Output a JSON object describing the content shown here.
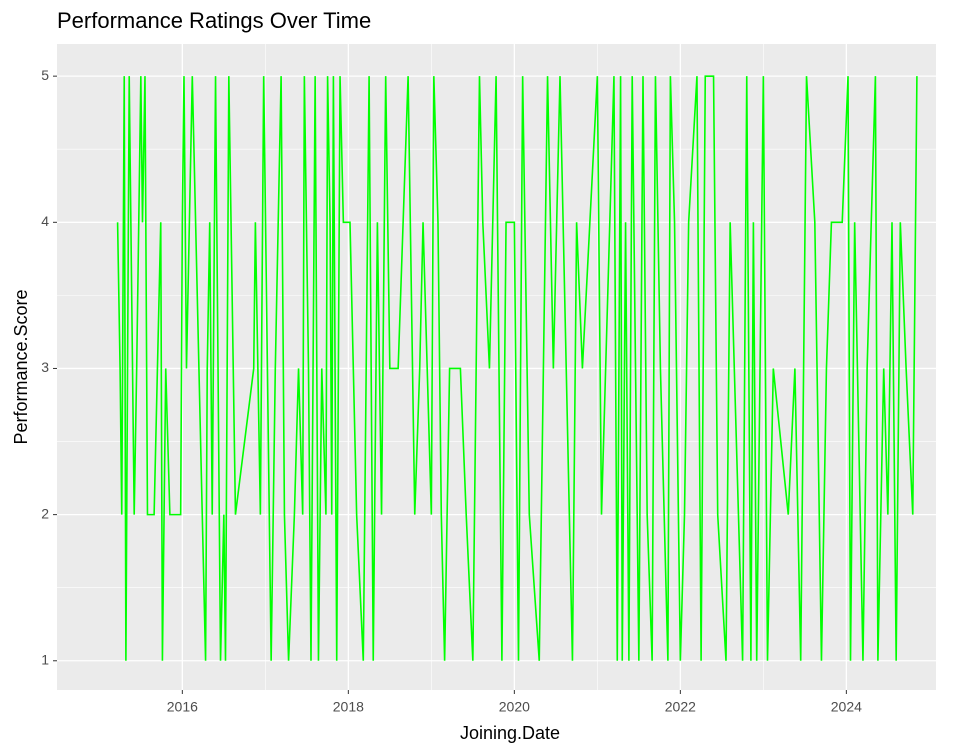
{
  "chart_data": {
    "type": "line",
    "title": "Performance Ratings Over Time",
    "x_label": "Joining.Date",
    "y_label": "Performance.Score",
    "x": [
      2015.22,
      2015.25,
      2015.27,
      2015.3,
      2015.32,
      2015.36,
      2015.42,
      2015.45,
      2015.5,
      2015.52,
      2015.55,
      2015.58,
      2015.66,
      2015.7,
      2015.74,
      2015.76,
      2015.8,
      2015.85,
      2015.98,
      2016.0,
      2016.02,
      2016.05,
      2016.12,
      2016.2,
      2016.28,
      2016.3,
      2016.33,
      2016.36,
      2016.4,
      2016.46,
      2016.5,
      2016.52,
      2016.56,
      2016.64,
      2016.86,
      2016.88,
      2016.94,
      2016.98,
      2017.07,
      2017.12,
      2017.19,
      2017.23,
      2017.28,
      2017.35,
      2017.4,
      2017.45,
      2017.47,
      2017.52,
      2017.55,
      2017.6,
      2017.64,
      2017.68,
      2017.73,
      2017.75,
      2017.78,
      2017.8,
      2017.82,
      2017.86,
      2017.9,
      2017.94,
      2018.02,
      2018.1,
      2018.18,
      2018.25,
      2018.3,
      2018.35,
      2018.4,
      2018.45,
      2018.5,
      2018.6,
      2018.72,
      2018.8,
      2018.86,
      2018.9,
      2019.0,
      2019.03,
      2019.08,
      2019.12,
      2019.16,
      2019.22,
      2019.35,
      2019.42,
      2019.5,
      2019.58,
      2019.62,
      2019.7,
      2019.78,
      2019.85,
      2019.9,
      2020.0,
      2020.05,
      2020.1,
      2020.18,
      2020.3,
      2020.4,
      2020.47,
      2020.55,
      2020.7,
      2020.75,
      2020.82,
      2021.0,
      2021.05,
      2021.1,
      2021.2,
      2021.24,
      2021.28,
      2021.3,
      2021.34,
      2021.38,
      2021.42,
      2021.46,
      2021.5,
      2021.55,
      2021.6,
      2021.66,
      2021.7,
      2021.76,
      2021.85,
      2021.88,
      2021.93,
      2022.0,
      2022.05,
      2022.1,
      2022.2,
      2022.25,
      2022.3,
      2022.4,
      2022.45,
      2022.55,
      2022.6,
      2022.7,
      2022.75,
      2022.8,
      2022.85,
      2022.88,
      2022.92,
      2023.0,
      2023.05,
      2023.12,
      2023.3,
      2023.38,
      2023.45,
      2023.52,
      2023.62,
      2023.7,
      2023.76,
      2023.82,
      2023.95,
      2024.02,
      2024.05,
      2024.1,
      2024.2,
      2024.25,
      2024.35,
      2024.38,
      2024.45,
      2024.5,
      2024.55,
      2024.6,
      2024.65,
      2024.72,
      2024.8,
      2024.85
    ],
    "values": [
      4,
      3,
      2,
      5,
      1,
      5,
      2,
      3,
      5,
      4,
      5,
      2,
      2,
      3,
      4,
      1,
      3,
      2,
      2,
      4,
      5,
      3,
      5,
      3,
      1,
      3,
      4,
      2,
      5,
      1,
      2,
      1,
      5,
      2,
      3,
      4,
      2,
      5,
      1,
      3,
      5,
      2,
      1,
      2,
      3,
      2,
      5,
      3,
      1,
      5,
      1,
      3,
      2,
      5,
      4,
      2,
      5,
      1,
      5,
      4,
      4,
      2,
      1,
      5,
      1,
      4,
      2,
      5,
      3,
      3,
      5,
      2,
      3,
      4,
      2,
      5,
      4,
      2,
      1,
      3,
      3,
      2,
      1,
      5,
      4,
      3,
      5,
      1,
      4,
      4,
      1,
      5,
      2,
      1,
      5,
      3,
      5,
      1,
      4,
      3,
      5,
      2,
      3,
      5,
      1,
      5,
      1,
      4,
      1,
      5,
      3,
      1,
      5,
      2,
      1,
      5,
      3,
      1,
      5,
      4,
      1,
      2,
      4,
      5,
      1,
      5,
      5,
      2,
      1,
      4,
      2,
      1,
      5,
      1,
      4,
      1,
      5,
      1,
      3,
      2,
      3,
      1,
      5,
      4,
      1,
      3,
      4,
      4,
      5,
      1,
      4,
      1,
      3,
      5,
      1,
      3,
      2,
      4,
      1,
      4,
      3,
      2,
      5
    ],
    "color": "#00ff00",
    "xlim": [
      2014.49,
      2025.08
    ],
    "xticks": [
      2016,
      2018,
      2020,
      2022,
      2024
    ],
    "ylim": [
      0.8,
      5.22
    ],
    "yticks": [
      1,
      2,
      3,
      4,
      5
    ],
    "grid": true
  }
}
